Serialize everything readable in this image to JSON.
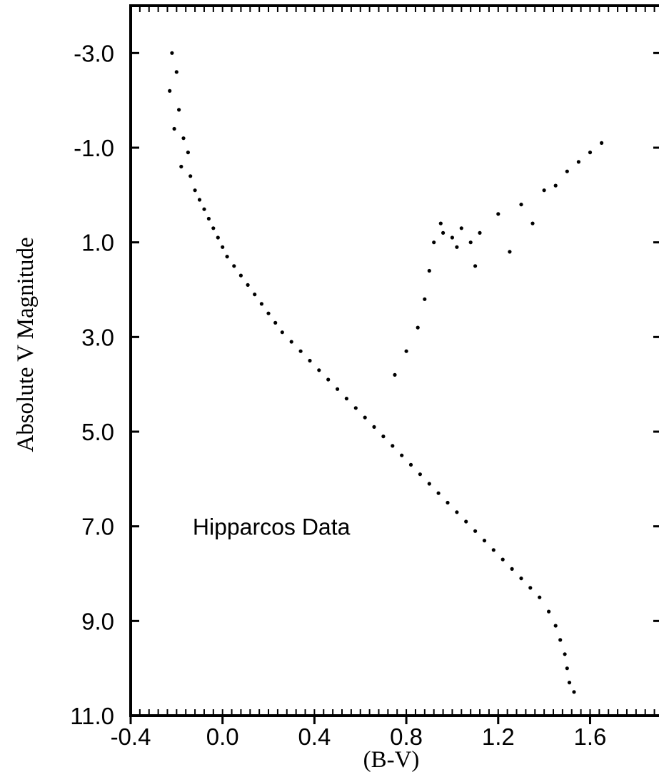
{
  "chart_data": {
    "type": "scatter",
    "title": "",
    "xlabel": "(B-V)",
    "ylabel": "Absolute V Magnitude",
    "xlim": [
      -0.4,
      1.9
    ],
    "ylim": [
      11.0,
      -4.0
    ],
    "y_inverted": true,
    "x_ticks": [
      -0.4,
      0.0,
      0.4,
      0.8,
      1.2,
      1.6
    ],
    "x_tick_labels": [
      "-0.4",
      "0.0",
      "0.4",
      "0.8",
      "1.2",
      "1.6"
    ],
    "y_ticks": [
      -3.0,
      -1.0,
      1.0,
      3.0,
      5.0,
      7.0,
      9.0,
      11.0
    ],
    "y_tick_labels": [
      "-3.0",
      "-1.0",
      "1.0",
      "3.0",
      "5.0",
      "7.0",
      "9.0",
      "11.0"
    ],
    "grid": false,
    "annotation": "Hipparcos Data",
    "point_color": "#000000",
    "series": [
      {
        "values": [
          [
            -0.22,
            -3.0
          ],
          [
            -0.2,
            -2.6
          ],
          [
            -0.23,
            -2.2
          ],
          [
            -0.19,
            -1.8
          ],
          [
            -0.21,
            -1.4
          ],
          [
            -0.17,
            -1.2
          ],
          [
            -0.15,
            -0.9
          ],
          [
            -0.18,
            -0.6
          ],
          [
            -0.14,
            -0.4
          ],
          [
            -0.12,
            -0.1
          ],
          [
            -0.1,
            0.1
          ],
          [
            -0.08,
            0.3
          ],
          [
            -0.06,
            0.5
          ],
          [
            -0.04,
            0.7
          ],
          [
            -0.02,
            0.9
          ],
          [
            0.0,
            1.1
          ],
          [
            0.02,
            1.3
          ],
          [
            0.05,
            1.5
          ],
          [
            0.08,
            1.7
          ],
          [
            0.11,
            1.9
          ],
          [
            0.14,
            2.1
          ],
          [
            0.17,
            2.3
          ],
          [
            0.2,
            2.5
          ],
          [
            0.23,
            2.7
          ],
          [
            0.26,
            2.9
          ],
          [
            0.3,
            3.1
          ],
          [
            0.34,
            3.3
          ],
          [
            0.38,
            3.5
          ],
          [
            0.42,
            3.7
          ],
          [
            0.46,
            3.9
          ],
          [
            0.5,
            4.1
          ],
          [
            0.54,
            4.3
          ],
          [
            0.58,
            4.5
          ],
          [
            0.62,
            4.7
          ],
          [
            0.66,
            4.9
          ],
          [
            0.7,
            5.1
          ],
          [
            0.74,
            5.3
          ],
          [
            0.78,
            5.5
          ],
          [
            0.82,
            5.7
          ],
          [
            0.86,
            5.9
          ],
          [
            0.9,
            6.1
          ],
          [
            0.94,
            6.3
          ],
          [
            0.98,
            6.5
          ],
          [
            1.02,
            6.7
          ],
          [
            1.06,
            6.9
          ],
          [
            1.1,
            7.1
          ],
          [
            1.14,
            7.3
          ],
          [
            1.18,
            7.5
          ],
          [
            1.22,
            7.7
          ],
          [
            1.26,
            7.9
          ],
          [
            1.3,
            8.1
          ],
          [
            1.34,
            8.3
          ],
          [
            1.38,
            8.5
          ],
          [
            1.42,
            8.8
          ],
          [
            1.45,
            9.1
          ],
          [
            1.47,
            9.4
          ],
          [
            1.49,
            9.7
          ],
          [
            1.5,
            10.0
          ],
          [
            1.51,
            10.3
          ],
          [
            1.53,
            10.5
          ],
          [
            0.92,
            1.0
          ],
          [
            0.96,
            0.8
          ],
          [
            1.0,
            0.9
          ],
          [
            1.04,
            0.7
          ],
          [
            1.08,
            1.0
          ],
          [
            1.12,
            0.8
          ],
          [
            0.95,
            0.6
          ],
          [
            1.02,
            1.1
          ],
          [
            0.9,
            1.6
          ],
          [
            0.88,
            2.2
          ],
          [
            0.85,
            2.8
          ],
          [
            0.8,
            3.3
          ],
          [
            0.75,
            3.8
          ],
          [
            1.2,
            0.4
          ],
          [
            1.3,
            0.2
          ],
          [
            1.4,
            -0.1
          ],
          [
            1.5,
            -0.5
          ],
          [
            1.6,
            -0.9
          ],
          [
            1.65,
            -1.1
          ],
          [
            1.55,
            -0.7
          ],
          [
            1.45,
            -0.2
          ],
          [
            1.35,
            0.6
          ],
          [
            1.25,
            1.2
          ],
          [
            1.1,
            1.5
          ]
        ]
      }
    ]
  }
}
